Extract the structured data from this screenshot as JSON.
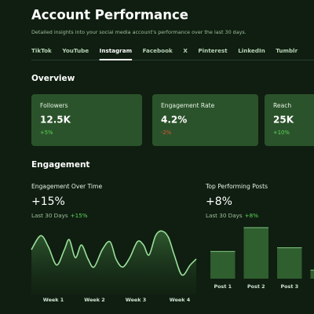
{
  "header": {
    "title": "Account Performance",
    "subtitle": "Detailed insights into your social media account's performance over the last 30 days."
  },
  "tabs": {
    "items": [
      "TikTok",
      "YouTube",
      "Instagram",
      "Facebook",
      "X",
      "Pinterest",
      "LinkedIn",
      "Tumblr"
    ],
    "active": 2
  },
  "overview": {
    "title": "Overview",
    "cards": [
      {
        "label": "Followers",
        "value": "12.5K",
        "delta": "+5%",
        "delta_color": "#5cd65c"
      },
      {
        "label": "Engagement Rate",
        "value": "4.2%",
        "delta": "-2%",
        "delta_color": "#e0533a"
      },
      {
        "label": "Reach",
        "value": "25K",
        "delta": "+10%",
        "delta_color": "#5cd65c"
      }
    ]
  },
  "engagement": {
    "title": "Engagement",
    "over_time": {
      "title": "Engagement Over Time",
      "value": "+15%",
      "period": "Last 30 Days",
      "change": "+15%"
    },
    "top_posts": {
      "title": "Top Performing Posts",
      "value": "+8%",
      "period": "Last 30 Days",
      "change": "+8%"
    }
  },
  "chart_data": [
    {
      "type": "line",
      "x": [
        0,
        1.7,
        3.1,
        4.6,
        6,
        6.9,
        8,
        9.1,
        10.3,
        11.4,
        12.9,
        14.3,
        15.4,
        16.6,
        17.9,
        19.3,
        20.4,
        21.4,
        22.6,
        23.7,
        24.9,
        26,
        27.4,
        28.9,
        30
      ],
      "values": [
        67,
        88,
        71,
        44,
        67,
        82,
        55,
        74,
        53,
        41,
        67,
        79,
        53,
        41,
        55,
        79,
        74,
        59,
        88,
        95,
        86,
        59,
        29,
        44,
        53
      ],
      "xlim": [
        0,
        30
      ],
      "ylim": [
        0,
        100
      ],
      "xticks": [
        {
          "value": 4,
          "label": "Week 1"
        },
        {
          "value": 11.5,
          "label": "Week 2"
        },
        {
          "value": 19,
          "label": "Week 3"
        },
        {
          "value": 27,
          "label": "Week 4"
        }
      ],
      "color": "#9ae09a"
    },
    {
      "type": "bar",
      "categories": [
        "Post 1",
        "Post 2",
        "Post 3",
        null
      ],
      "values": [
        37,
        69,
        42,
        12
      ],
      "ylim": [
        0,
        80
      ],
      "color": "#2f5e2f"
    }
  ]
}
